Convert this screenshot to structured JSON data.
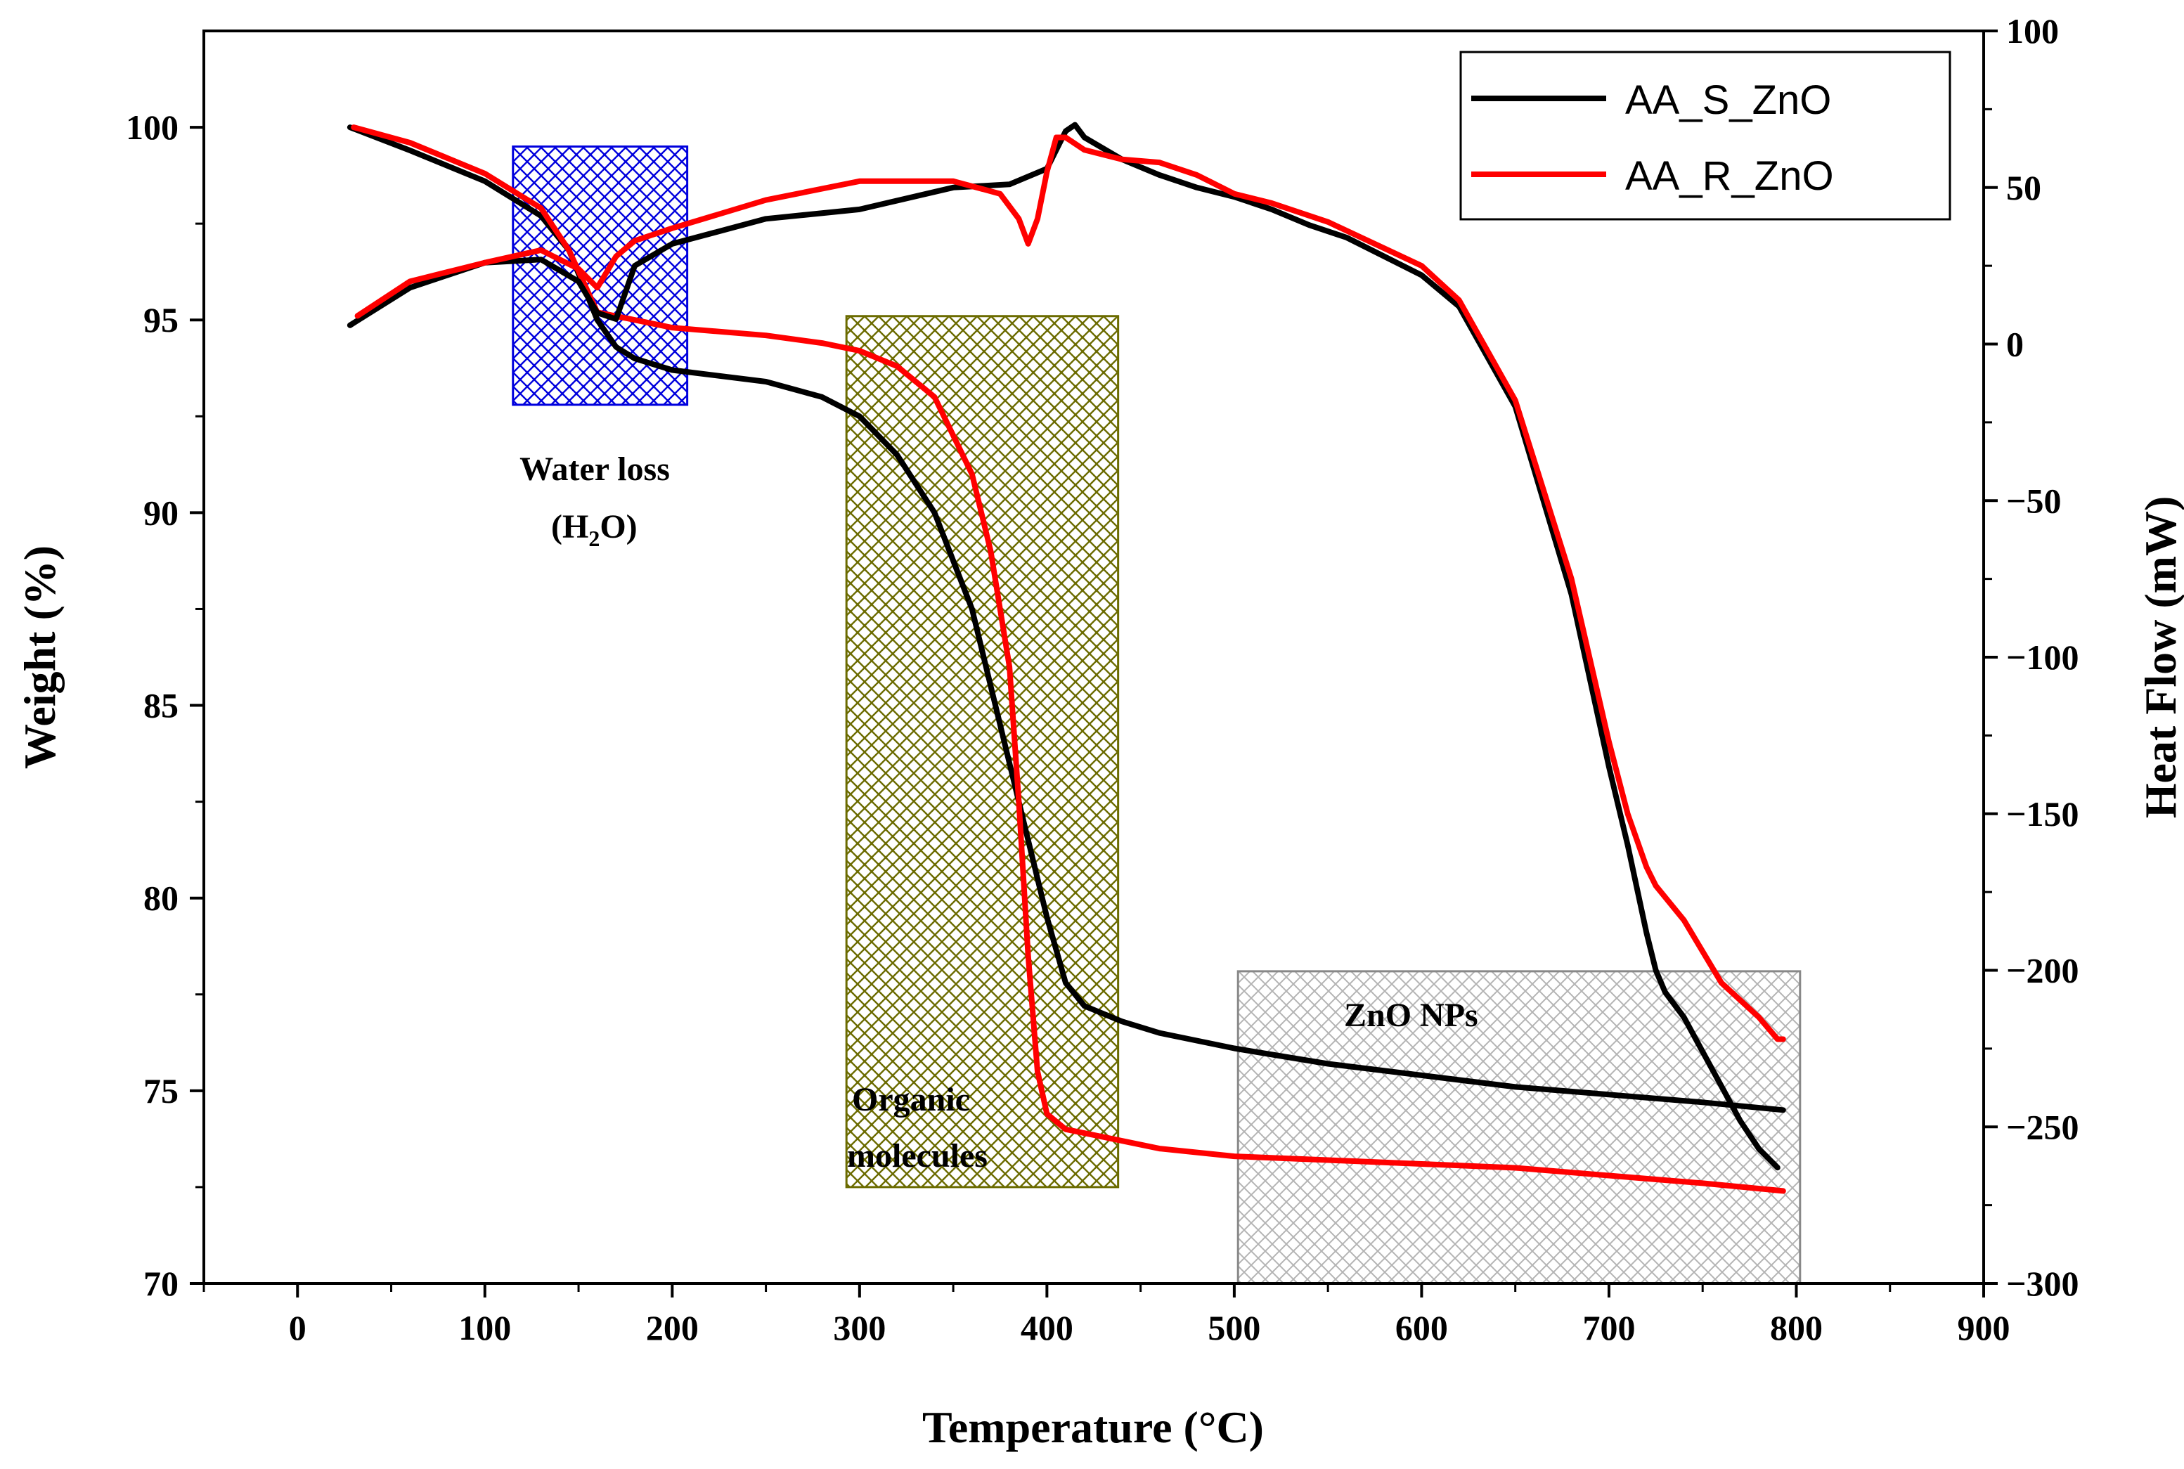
{
  "chart_data": {
    "type": "line",
    "title": "",
    "xlabel": "Temperature (°C)",
    "ylabel_left": "Weight (%)",
    "ylabel_right": "Heat Flow (mW)",
    "xlim": [
      -50,
      900
    ],
    "ylim_left": [
      70,
      102.5
    ],
    "ylim_right": [
      -300,
      100
    ],
    "x_ticks": [
      0,
      100,
      200,
      300,
      400,
      500,
      600,
      700,
      800,
      900
    ],
    "y_left_ticks": [
      70,
      75,
      80,
      85,
      90,
      95,
      100
    ],
    "y_right_ticks": [
      -300,
      -250,
      -200,
      -150,
      -100,
      -50,
      0,
      50,
      100
    ],
    "grid": false,
    "legend_position": "top-right",
    "colors": {
      "AA_S_ZnO": "#000000",
      "AA_R_ZnO": "#ff0000"
    },
    "series": [
      {
        "name": "AA_S_ZnO",
        "kind": "weight",
        "axis": "left",
        "x": [
          28,
          60,
          100,
          130,
          145,
          160,
          170,
          180,
          200,
          250,
          280,
          300,
          320,
          340,
          360,
          370,
          380,
          390,
          400,
          410,
          420,
          440,
          460,
          500,
          550,
          600,
          650,
          700,
          750,
          793
        ],
        "y": [
          100.0,
          99.4,
          98.6,
          97.7,
          96.8,
          95.0,
          94.3,
          94.0,
          93.7,
          93.4,
          93.0,
          92.5,
          91.5,
          90.0,
          87.5,
          85.5,
          83.5,
          81.5,
          79.5,
          77.8,
          77.2,
          76.8,
          76.5,
          76.1,
          75.7,
          75.4,
          75.1,
          74.9,
          74.7,
          74.5
        ]
      },
      {
        "name": "AA_R_ZnO",
        "kind": "weight",
        "axis": "left",
        "x": [
          30,
          60,
          100,
          130,
          145,
          160,
          180,
          200,
          250,
          280,
          300,
          320,
          340,
          360,
          370,
          380,
          385,
          390,
          395,
          400,
          410,
          430,
          460,
          500,
          550,
          600,
          650,
          700,
          750,
          793
        ],
        "y": [
          100.0,
          99.6,
          98.8,
          97.9,
          96.8,
          95.2,
          95.0,
          94.8,
          94.6,
          94.4,
          94.2,
          93.8,
          93.0,
          91.0,
          89.0,
          86.0,
          82.5,
          78.5,
          75.5,
          74.4,
          74.0,
          73.8,
          73.5,
          73.3,
          73.2,
          73.1,
          73.0,
          72.8,
          72.6,
          72.4
        ]
      },
      {
        "name": "AA_S_ZnO",
        "kind": "heat_flow",
        "axis": "right",
        "x": [
          28,
          60,
          100,
          130,
          150,
          160,
          170,
          180,
          200,
          250,
          300,
          350,
          380,
          400,
          410,
          415,
          420,
          440,
          460,
          480,
          500,
          520,
          540,
          560,
          600,
          620,
          650,
          680,
          700,
          710,
          720,
          725,
          730,
          740,
          750,
          760,
          770,
          780,
          790
        ],
        "y": [
          6,
          18,
          26,
          27,
          20,
          10,
          8,
          25,
          32,
          40,
          43,
          50,
          51,
          56,
          68,
          70,
          66,
          59,
          54,
          50,
          47,
          43,
          38,
          34,
          22,
          12,
          -20,
          -80,
          -135,
          -160,
          -188,
          -200,
          -207,
          -215,
          -226,
          -237,
          -248,
          -257,
          -263
        ]
      },
      {
        "name": "AA_R_ZnO",
        "kind": "heat_flow",
        "axis": "right",
        "x": [
          32,
          60,
          100,
          130,
          150,
          160,
          170,
          180,
          200,
          250,
          300,
          350,
          375,
          385,
          390,
          395,
          400,
          405,
          410,
          420,
          440,
          460,
          480,
          500,
          520,
          550,
          600,
          620,
          650,
          680,
          700,
          710,
          720,
          725,
          740,
          760,
          780,
          790,
          793
        ],
        "y": [
          9,
          20,
          26,
          30,
          24,
          18,
          28,
          33,
          37,
          46,
          52,
          52,
          48,
          40,
          32,
          40,
          55,
          66,
          66,
          62,
          59,
          58,
          54,
          48,
          45,
          39,
          25,
          14,
          -18,
          -75,
          -127,
          -150,
          -167,
          -173,
          -184,
          -204,
          -215,
          -222,
          -222
        ]
      }
    ],
    "annotations": [
      {
        "text": "Water loss",
        "region_x": [
          115,
          208
        ],
        "region_y": [
          92.8,
          99.5
        ],
        "hatch_color": "#0000dd"
      },
      {
        "text": "Organic",
        "region_x": [
          293,
          438
        ],
        "region_y": [
          72.5,
          95.1
        ],
        "hatch_color": "#6b6b00"
      },
      {
        "text": "ZnO NPs",
        "region_x": [
          502,
          802
        ],
        "region_y": [
          70.0,
          78.1
        ],
        "hatch_color": "#b4b4b4"
      }
    ],
    "annotation_lines": {
      "water_chem_main": "(H",
      "water_chem_sub": "2",
      "water_chem_end": "O)",
      "organic_line2": "molecules"
    }
  }
}
